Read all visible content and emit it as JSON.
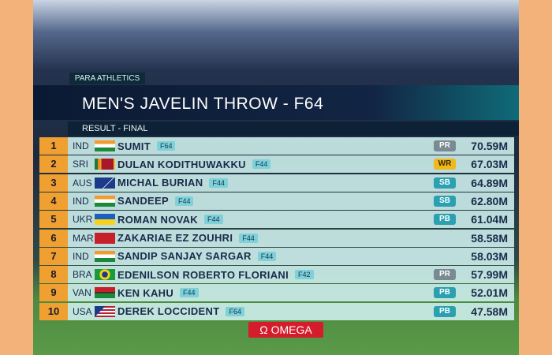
{
  "header": {
    "tag": "PARA ATHLETICS",
    "title": "MEN'S JAVELIN THROW - F64",
    "subtitle": "RESULT - FINAL"
  },
  "table": {
    "rows": [
      [
        "1",
        "IND",
        "SUMIT",
        "F64",
        "PR",
        "70.59M"
      ],
      [
        "2",
        "SRI",
        "DULAN KODITHUWAKKU",
        "F44",
        "WR",
        "67.03M"
      ],
      [
        "3",
        "AUS",
        "MICHAL BURIAN",
        "F44",
        "SB",
        "64.89M"
      ],
      [
        "4",
        "IND",
        "SANDEEP",
        "F44",
        "SB",
        "62.80M"
      ],
      [
        "5",
        "UKR",
        "ROMAN NOVAK",
        "F44",
        "PB",
        "61.04M"
      ],
      [
        "6",
        "MAR",
        "ZAKARIAE EZ ZOUHRI",
        "F44",
        null,
        "58.58M"
      ],
      [
        "7",
        "IND",
        "SANDIP SANJAY SARGAR",
        "F44",
        null,
        "58.03M"
      ],
      [
        "8",
        "BRA",
        "EDENILSON ROBERTO FLORIANI",
        "F42",
        "PR",
        "57.99M"
      ],
      [
        "9",
        "VAN",
        "KEN KAHU",
        "F44",
        "PB",
        "52.01M"
      ],
      [
        "10",
        "USA",
        "DEREK LOCCIDENT",
        "F64",
        "PB",
        "47.58M"
      ]
    ]
  },
  "footer": {
    "sponsor": "Ω OMEGA"
  }
}
